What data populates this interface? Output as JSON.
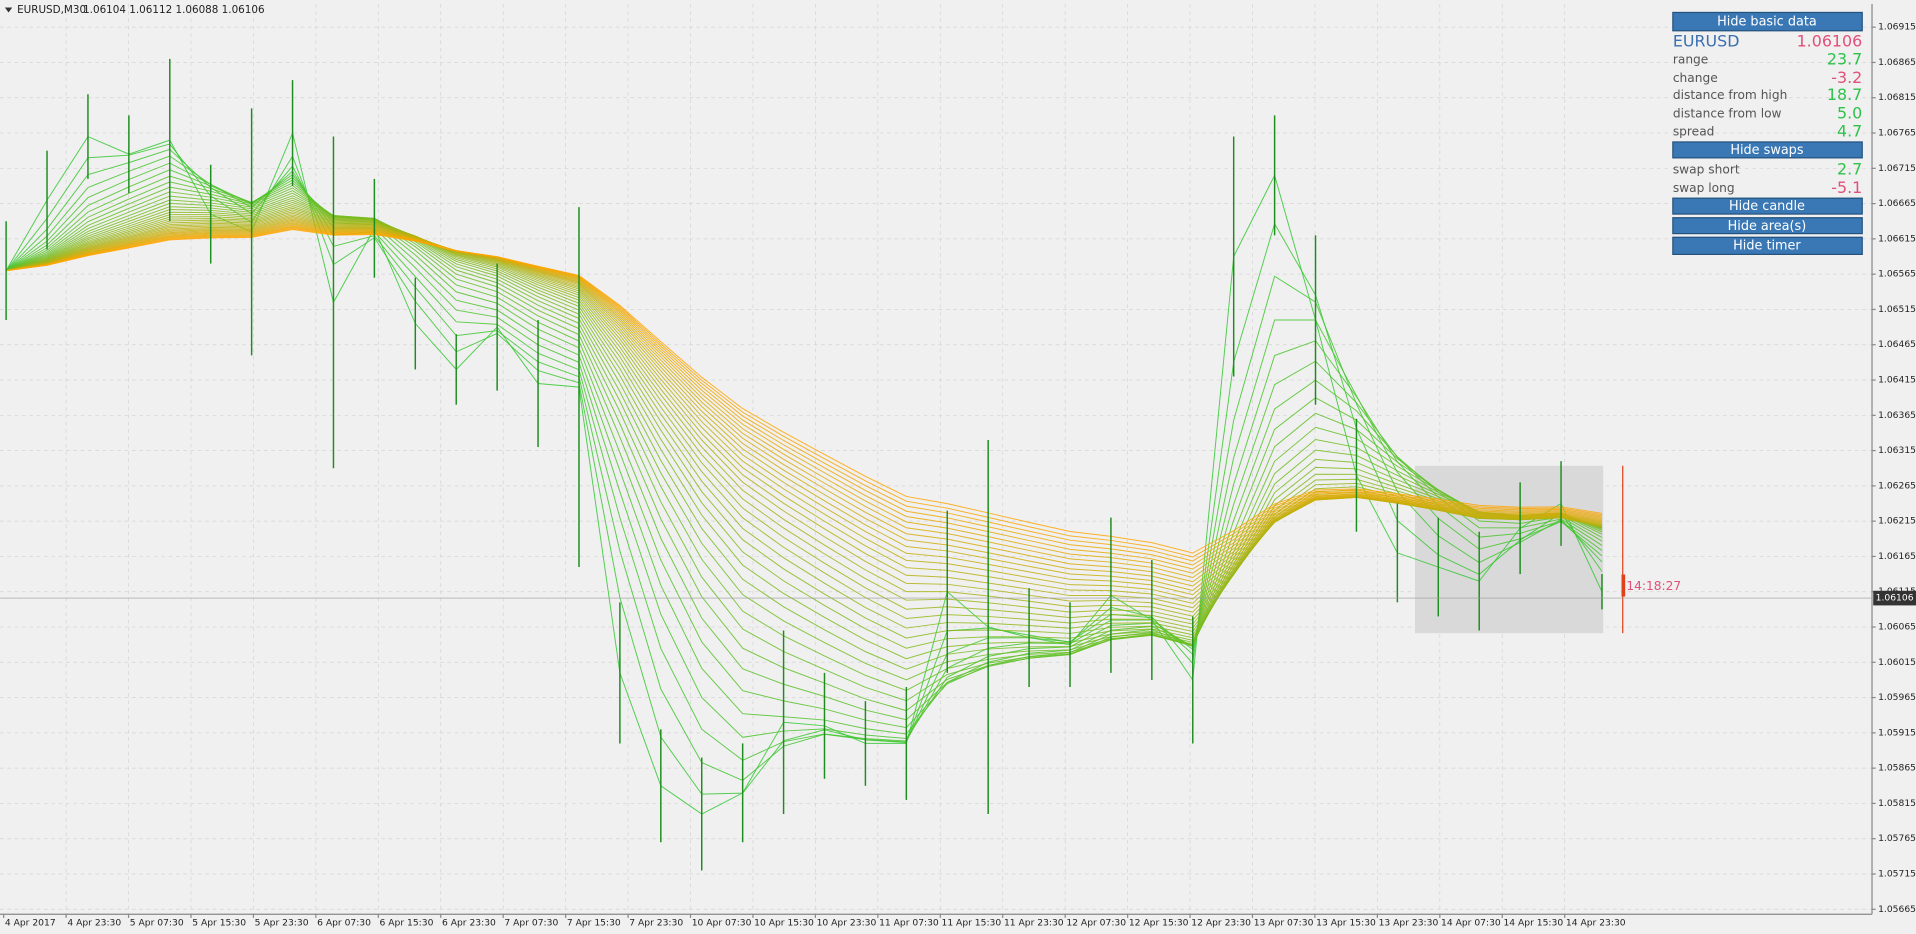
{
  "header": {
    "symbol": "EURUSD,M30",
    "quote": "1.06104 1.06112 1.06088 1.06106"
  },
  "chart_data": {
    "type": "candlestick",
    "ylim": [
      1.05658,
      1.06948
    ],
    "yticks": [
      1.06915,
      1.06865,
      1.06815,
      1.06765,
      1.06715,
      1.06665,
      1.06615,
      1.06565,
      1.06515,
      1.06465,
      1.06415,
      1.06365,
      1.06315,
      1.06265,
      1.06215,
      1.06165,
      1.06115,
      1.06065,
      1.06015,
      1.05965,
      1.05915,
      1.05865,
      1.05815,
      1.05765,
      1.05715,
      1.05665
    ],
    "x_labels": [
      "4 Apr 2017",
      "4 Apr 23:30",
      "5 Apr 07:30",
      "5 Apr 15:30",
      "5 Apr 23:30",
      "6 Apr 07:30",
      "6 Apr 15:30",
      "6 Apr 23:30",
      "7 Apr 07:30",
      "7 Apr 15:30",
      "7 Apr 23:30",
      "10 Apr 07:30",
      "10 Apr 15:30",
      "10 Apr 23:30",
      "11 Apr 07:30",
      "11 Apr 15:30",
      "11 Apr 23:30",
      "12 Apr 07:30",
      "12 Apr 15:30",
      "12 Apr 23:30",
      "13 Apr 07:30",
      "13 Apr 15:30",
      "13 Apr 23:30",
      "14 Apr 07:30",
      "14 Apr 15:30",
      "14 Apr 23:30"
    ],
    "color": "#1e8c1e",
    "grid": true,
    "high": [
      1.0664,
      1.0674,
      1.0682,
      1.0679,
      1.0687,
      1.0672,
      1.068,
      1.0684,
      1.0676,
      1.067,
      1.0656,
      1.0648,
      1.0658,
      1.065,
      1.0666,
      1.061,
      1.0592,
      1.0588,
      1.059,
      1.0606,
      1.06,
      1.0596,
      1.0598,
      1.0623,
      1.0633,
      1.0612,
      1.061,
      1.0622,
      1.0616,
      1.0608,
      1.0676,
      1.0679,
      1.0662,
      1.0636,
      1.0624,
      1.0622,
      1.062,
      1.0627,
      1.063,
      1.0614
    ],
    "low": [
      1.065,
      1.066,
      1.067,
      1.0668,
      1.0664,
      1.0658,
      1.0645,
      1.0669,
      1.0629,
      1.0656,
      1.0643,
      1.0638,
      1.064,
      1.0632,
      1.0615,
      1.059,
      1.0576,
      1.0572,
      1.0576,
      1.058,
      1.0585,
      1.0584,
      1.0582,
      1.06,
      1.058,
      1.0598,
      1.0598,
      1.06,
      1.0599,
      1.059,
      1.0642,
      1.0662,
      1.0638,
      1.062,
      1.061,
      1.0608,
      1.0606,
      1.0614,
      1.0618,
      1.0609
    ],
    "current_price": 1.06106
  },
  "panel": {
    "buttons": [
      "Hide basic data",
      "Hide swaps",
      "Hide candle",
      "Hide area(s)",
      "Hide timer"
    ],
    "symbol": "EURUSD",
    "price": "1.06106",
    "rows": [
      [
        "range",
        "23.7"
      ],
      [
        "change",
        "-3.2"
      ],
      [
        "distance from high",
        "18.7"
      ],
      [
        "distance from low",
        "5.0"
      ],
      [
        "spread",
        "4.7"
      ]
    ],
    "swaps": [
      [
        "swap short",
        "2.7"
      ],
      [
        "swap long",
        "-5.1"
      ]
    ]
  },
  "timer": "14:18:27"
}
